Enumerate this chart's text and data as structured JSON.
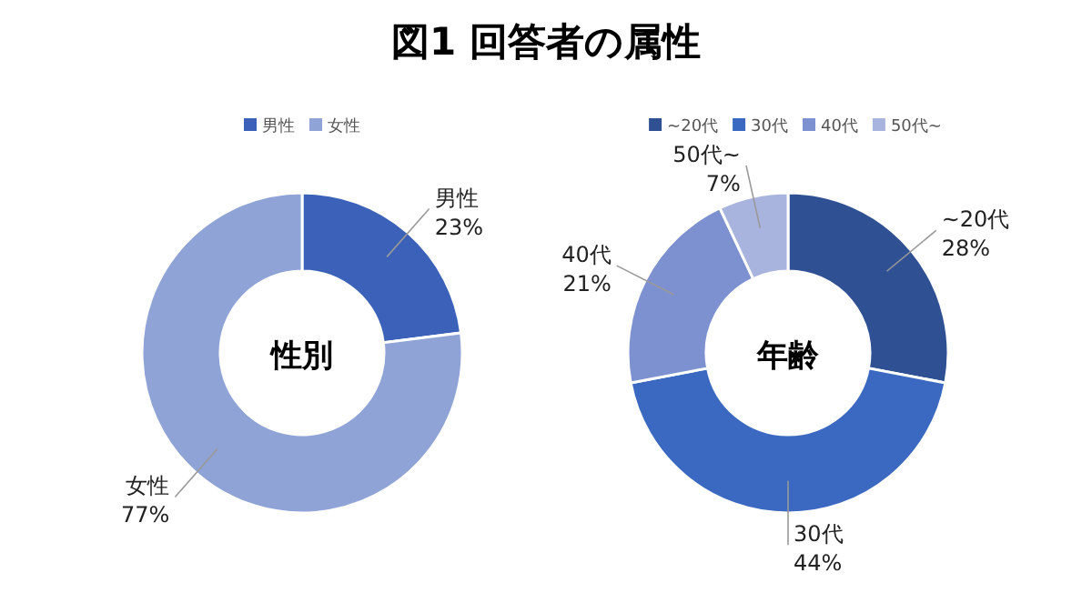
{
  "chart_data": [
    {
      "type": "donut",
      "title": "性別",
      "annotations": [
        "図1 回答者の属性"
      ],
      "categories": [
        "男性",
        "女性"
      ],
      "values": [
        23,
        77
      ],
      "value_labels": [
        "23%",
        "77%"
      ],
      "colors": [
        "#3b62b8",
        "#8fa3d6"
      ],
      "data_labels": true,
      "legend": "top"
    },
    {
      "type": "donut",
      "title": "年齢",
      "categories": [
        "~20代",
        "30代",
        "40代",
        "50代~"
      ],
      "values": [
        28,
        44,
        21,
        7
      ],
      "value_labels": [
        "28%",
        "44%",
        "21%",
        "7%"
      ],
      "colors": [
        "#2f5193",
        "#3b69c1",
        "#7d91d0",
        "#a8b4dd"
      ],
      "data_labels": true,
      "legend": "top"
    }
  ]
}
